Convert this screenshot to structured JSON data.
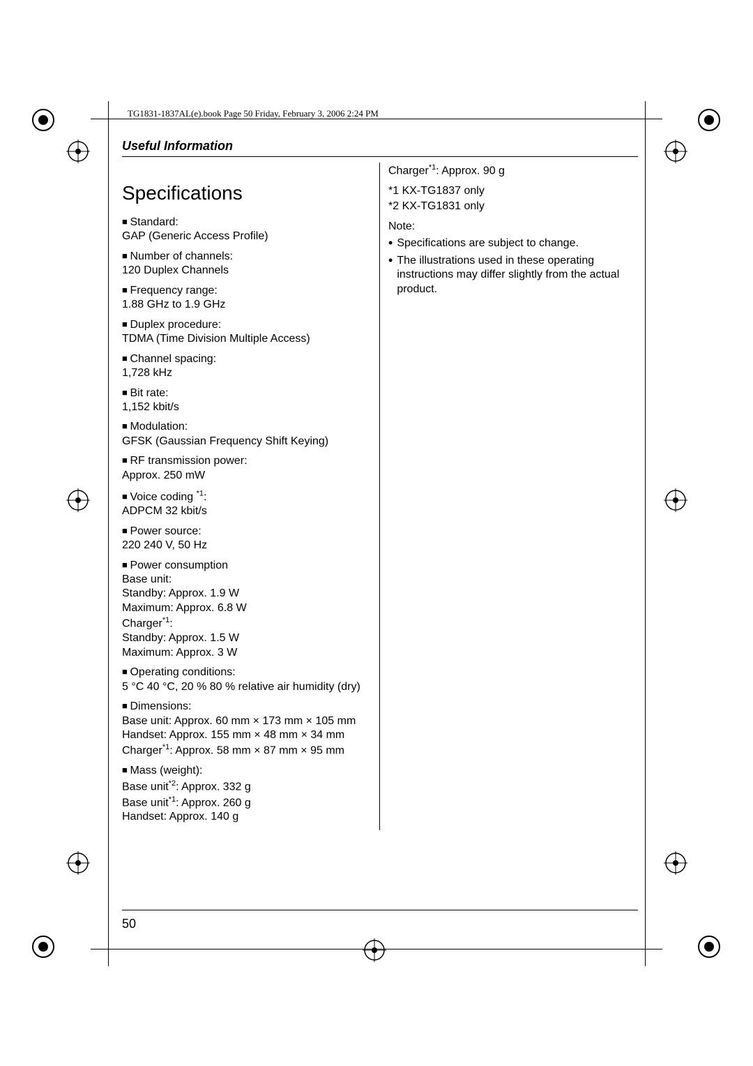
{
  "header": {
    "book_line": "TG1831-1837AL(e).book  Page 50  Friday, February 3, 2006  2:24 PM"
  },
  "section_title": "Useful Information",
  "page_title": "Specifications",
  "specs": [
    {
      "label": "Standard:",
      "value": "GAP (Generic Access Profile)"
    },
    {
      "label": "Number of channels:",
      "value": "120 Duplex Channels"
    },
    {
      "label": "Frequency range:",
      "value": "1.88 GHz to 1.9 GHz"
    },
    {
      "label": "Duplex procedure:",
      "value": "TDMA (Time Division Multiple Access)"
    },
    {
      "label": "Channel spacing:",
      "value": "1,728 kHz"
    },
    {
      "label": "Bit rate:",
      "value": "1,152 kbit/s"
    },
    {
      "label": "Modulation:",
      "value": "GFSK (Gaussian Frequency Shift Keying)"
    },
    {
      "label": "RF transmission power:",
      "value": "Approx. 250 mW"
    },
    {
      "label": "Voice coding ",
      "label_sup": "*1",
      "label_after": ":",
      "value": "ADPCM 32 kbit/s"
    },
    {
      "label": "Power source:",
      "value": "220 240 V, 50 Hz"
    },
    {
      "label": "Power consumption",
      "multiline": [
        "Base unit:",
        "Standby: Approx. 1.9 W",
        "Maximum: Approx. 6.8 W",
        {
          "text": "Charger",
          "sup": "*1",
          "after": ":"
        },
        "Standby: Approx. 1.5 W",
        "Maximum: Approx. 3 W"
      ]
    },
    {
      "label": "Operating conditions:",
      "value": "5 °C 40 °C, 20 % 80 % relative air humidity (dry)"
    },
    {
      "label": "Dimensions:",
      "multiline": [
        "Base unit:  Approx. 60 mm × 173 mm × 105 mm",
        "Handset:  Approx. 155 mm × 48 mm × 34 mm",
        {
          "text": "Charger",
          "sup": "*1",
          "after": ": Approx. 58 mm × 87 mm × 95 mm"
        }
      ]
    },
    {
      "label": "Mass (weight):",
      "multiline": [
        {
          "text": "Base unit",
          "sup": "*2",
          "after": ": Approx. 332 g"
        },
        {
          "text": "Base unit",
          "sup": "*1",
          "after": ": Approx. 260 g"
        },
        "Handset:  Approx. 140 g"
      ]
    }
  ],
  "right_column": {
    "charger_line": {
      "text": "Charger",
      "sup": "*1",
      "after": ": Approx. 90 g"
    },
    "footnotes": [
      "*1 KX-TG1837 only",
      "*2 KX-TG1831 only"
    ],
    "note_label": "Note:",
    "notes": [
      "Specifications are subject to change.",
      "The illustrations used in these operating instructions may differ slightly from the actual product."
    ]
  },
  "page_number": "50",
  "colors": {
    "text": "#000000",
    "background": "#ffffff"
  }
}
